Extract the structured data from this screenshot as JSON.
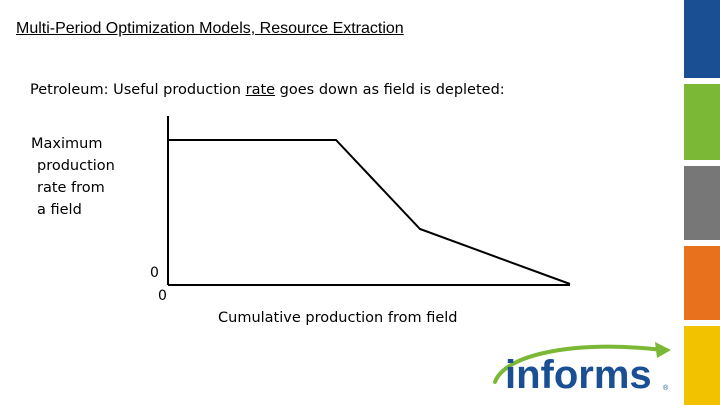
{
  "slide": {
    "title": "Multi-Period Optimization Models, Resource Extraction",
    "subtitle_pre": "Petroleum: Useful production ",
    "subtitle_underlined": "rate",
    "subtitle_post": " goes down as field is depleted:"
  },
  "diagram": {
    "y_label_lines": [
      "Maximum",
      "production",
      "rate from",
      "a field"
    ],
    "y_origin": "0",
    "x_origin": "0",
    "x_label": "Cumulative production from field"
  },
  "sidebar": {
    "colors": [
      "#1a4f93",
      "#7ab836",
      "#777777",
      "#e8711e",
      "#f2c200"
    ]
  },
  "logo": {
    "text": "informs",
    "mark": "®",
    "text_color": "#1a4f93",
    "arrow_color": "#7ab836"
  }
}
